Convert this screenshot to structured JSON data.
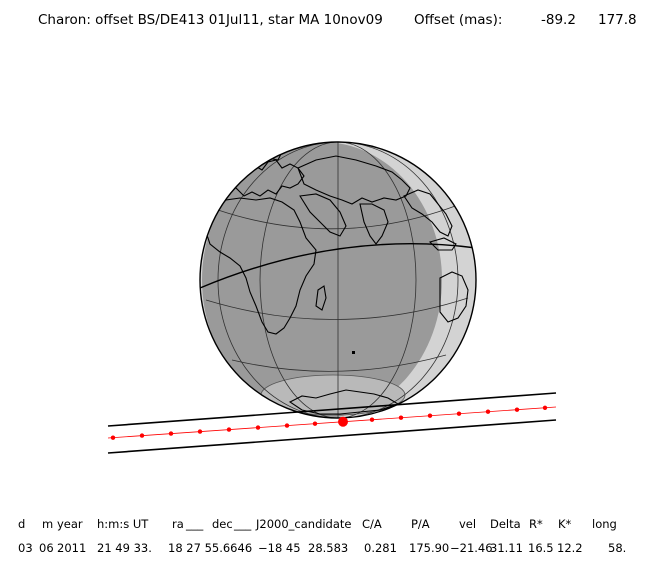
{
  "title": {
    "text": "Charon: offset BS/DE413 01Jul11, star MA 10nov09",
    "offset_label": "Offset (mas):",
    "offset_ra": "-89.2",
    "offset_dec": "177.8"
  },
  "map": {
    "colors": {
      "night_disk": "#9a9a9a",
      "day_limb": "#d3d3d3",
      "antarctic_cap": "#b9b9b9",
      "coast": "#000000",
      "track_dots": "#ff0000",
      "shadow_lines": "#000000"
    },
    "closest_approach_marker": "large-red-dot"
  },
  "table": {
    "headers": [
      "d",
      "m",
      "year",
      "h:m:s UT",
      "ra",
      "dec",
      "J2000_candidate",
      "C/A",
      "P/A",
      "vel",
      "Delta",
      "R*",
      "K*",
      "long"
    ],
    "values": [
      "03",
      "06",
      "2011",
      "21 49 33.",
      "18 27 55.6646",
      "−18 45",
      "28.583",
      "0.281",
      "175.90",
      "−21.46",
      "31.11",
      "16.5",
      "12.2",
      "58."
    ]
  }
}
